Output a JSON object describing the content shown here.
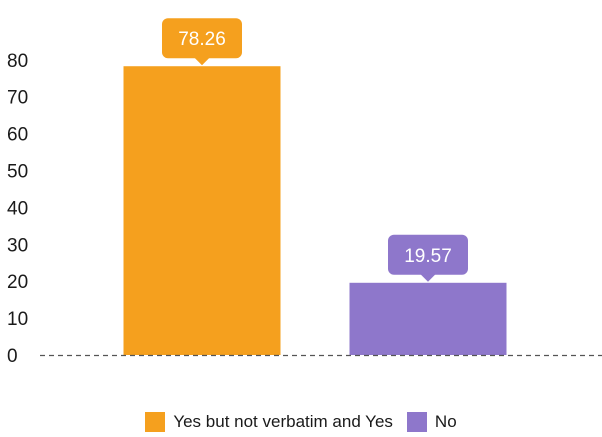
{
  "chart_data": {
    "type": "bar",
    "categories": [
      "Yes but not verbatim and Yes",
      "No"
    ],
    "values": [
      78.26,
      19.57
    ],
    "data_labels": [
      "78.26",
      "19.57"
    ],
    "colors": [
      "#f5a01e",
      "#8e77cb"
    ],
    "title": "",
    "xlabel": "",
    "ylabel": "",
    "ylim": [
      0,
      80
    ],
    "yticks": [
      "0",
      "10",
      "20",
      "30",
      "40",
      "50",
      "60",
      "70",
      "80"
    ],
    "grid": false,
    "baseline_style": "dashed",
    "legend": {
      "position": "bottom",
      "entries": [
        {
          "label": "Yes but not verbatim and Yes",
          "color": "#f5a01e"
        },
        {
          "label": "No",
          "color": "#8e77cb"
        }
      ]
    }
  }
}
